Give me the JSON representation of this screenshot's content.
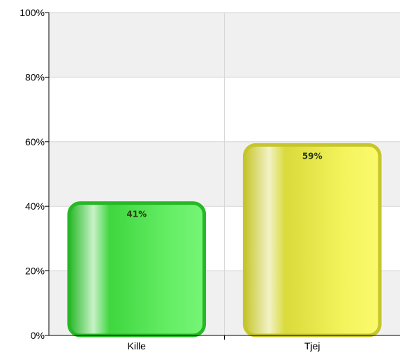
{
  "chart_data": {
    "type": "bar",
    "categories": [
      "Kille",
      "Tjej"
    ],
    "values": [
      41,
      59
    ],
    "data_labels": [
      "41%",
      "59%"
    ],
    "ylim": [
      0,
      100
    ],
    "yticks": [
      0,
      20,
      40,
      60,
      80,
      100
    ],
    "ytick_labels": [
      "0%",
      "20%",
      "40%",
      "60%",
      "80%",
      "100%"
    ],
    "title": "",
    "xlabel": "",
    "ylabel": "",
    "grid": true,
    "legend": "none",
    "colors": {
      "bars": [
        "#3fd63f",
        "#e2e24a"
      ],
      "bars_dark": [
        "#26b826",
        "#c6c62c"
      ],
      "bars_light": [
        "#76f576",
        "#fafa6e"
      ],
      "band": "#f0f0f0",
      "gridline": "#d6d6d6",
      "axis": "#000000"
    }
  }
}
